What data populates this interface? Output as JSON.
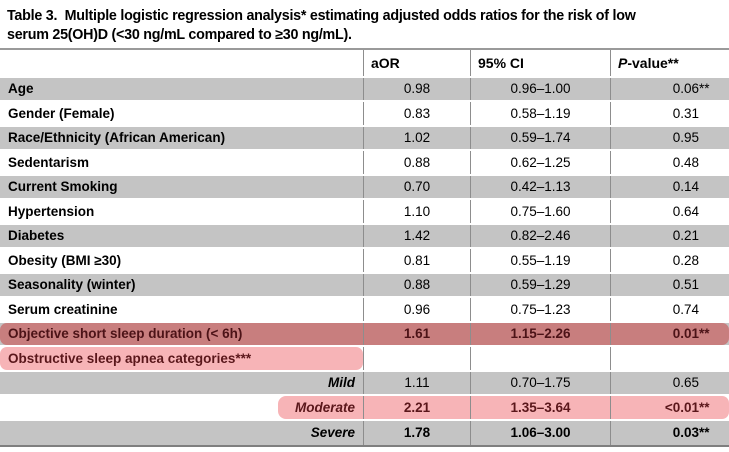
{
  "caption": {
    "lines": [
      "Table 3.  Multiple logistic regression analysis* estimating adjusted odds ratios for the risk of low",
      "serum 25(OH)D (<30 ng/mL compared to ≥30 ng/mL)."
    ]
  },
  "table": {
    "header": {
      "label": "",
      "aor": "aOR",
      "ci": "95% CI",
      "p_italic": "P",
      "p_rest": "-value**"
    },
    "rows": [
      {
        "label": "Age",
        "aor": "0.98",
        "ci": "0.96–1.00",
        "p": "0.06",
        "stars": "**"
      },
      {
        "label": "Gender (Female)",
        "aor": "0.83",
        "ci": "0.58–1.19",
        "p": "0.31",
        "stars": ""
      },
      {
        "label": "Race/Ethnicity (African American)",
        "aor": "1.02",
        "ci": "0.59–1.74",
        "p": "0.95",
        "stars": ""
      },
      {
        "label": "Sedentarism",
        "aor": "0.88",
        "ci": "0.62–1.25",
        "p": "0.48",
        "stars": ""
      },
      {
        "label": "Current Smoking",
        "aor": "0.70",
        "ci": "0.42–1.13",
        "p": "0.14",
        "stars": ""
      },
      {
        "label": "Hypertension",
        "aor": "1.10",
        "ci": "0.75–1.60",
        "p": "0.64",
        "stars": ""
      },
      {
        "label": "Diabetes",
        "aor": "1.42",
        "ci": "0.82–2.46",
        "p": "0.21",
        "stars": ""
      },
      {
        "label": "Obesity (BMI ≥30)",
        "aor": "0.81",
        "ci": "0.55–1.19",
        "p": "0.28",
        "stars": ""
      },
      {
        "label": "Seasonality (winter)",
        "aor": "0.88",
        "ci": "0.59–1.29",
        "p": "0.51",
        "stars": ""
      },
      {
        "label": "Serum creatinine",
        "aor": "0.96",
        "ci": "0.75–1.23",
        "p": "0.74",
        "stars": ""
      },
      {
        "label": "Objective short sleep duration (< 6h)",
        "aor": "1.61",
        "ci": "1.15–2.26",
        "p": "0.01",
        "stars": "**"
      },
      {
        "label": "Obstructive sleep apnea categories***",
        "aor": "",
        "ci": "",
        "p": "",
        "stars": ""
      },
      {
        "label": "Mild",
        "aor": "1.11",
        "ci": "0.70–1.75",
        "p": "0.65",
        "stars": ""
      },
      {
        "label": "Moderate",
        "aor": "2.21",
        "ci": "1.35–3.64",
        "p": "<0.01",
        "stars": "**"
      },
      {
        "label": "Severe",
        "aor": "1.78",
        "ci": "1.06–3.00",
        "p": "0.03",
        "stars": "**"
      }
    ]
  },
  "colors": {
    "row_gray": "#c4c4c4",
    "highlight_dark": "#c87e7e",
    "highlight_dark_text": "#4c1317",
    "highlight_light": "#f7b4b7",
    "highlight_light_text": "#5a171b",
    "rule_gray": "#8d8d8d"
  }
}
